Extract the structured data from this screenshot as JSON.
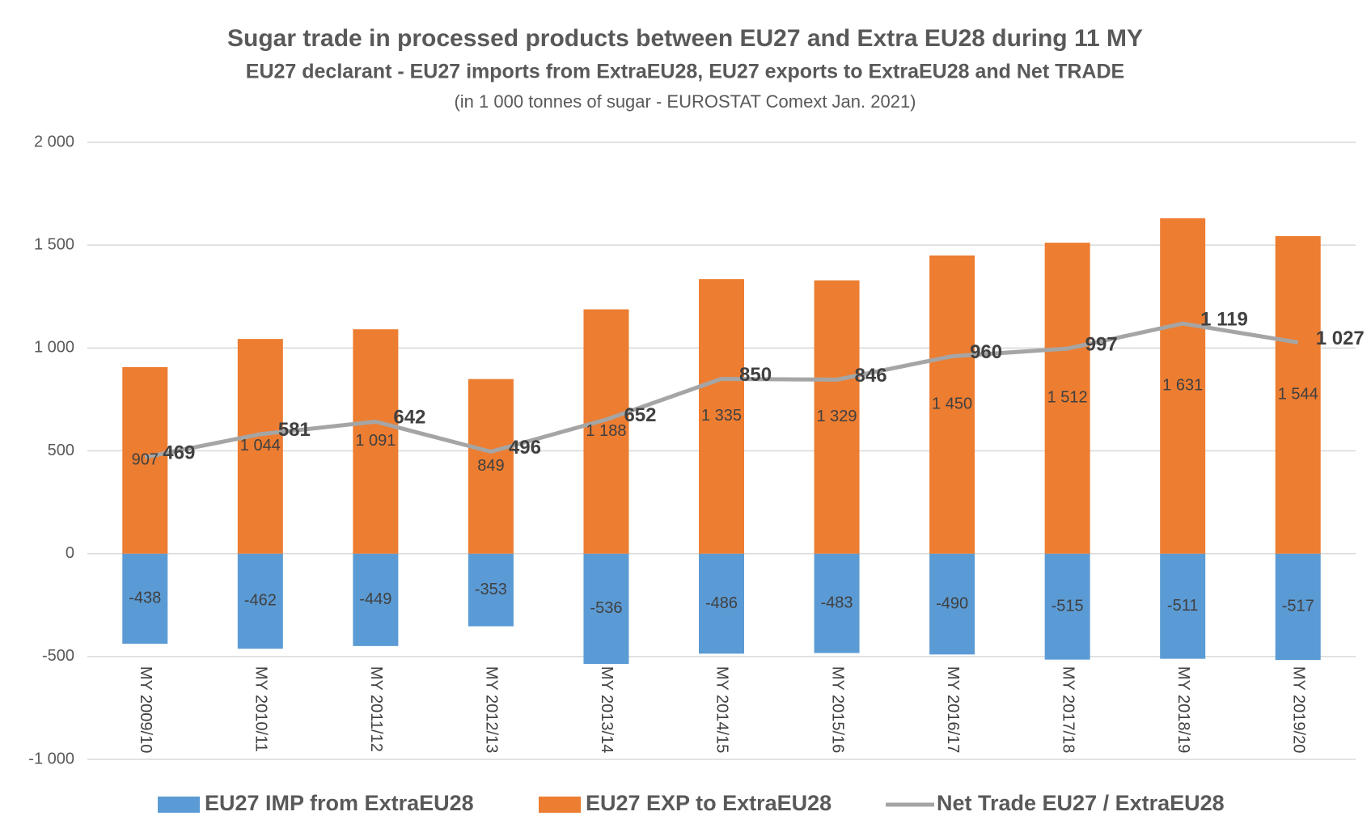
{
  "chart_data": {
    "type": "bar",
    "title": "Sugar trade in processed products between EU27 and Extra EU28 during 11 MY",
    "subtitle": "EU27 declarant - EU27 imports from ExtraEU28, EU27 exports to ExtraEU28 and Net TRADE",
    "caption": "(in 1 000 tonnes of sugar - EUROSTAT Comext Jan. 2021)",
    "categories": [
      "MY 2009/10",
      "MY 2010/11",
      "MY 2011/12",
      "MY 2012/13",
      "MY 2013/14",
      "MY 2014/15",
      "MY 2015/16",
      "MY 2016/17",
      "MY 2017/18",
      "MY 2018/19",
      "MY 2019/20"
    ],
    "series": [
      {
        "name": "EU27 IMP from ExtraEU28",
        "type": "bar",
        "color": "#5b9bd5",
        "values": [
          -438,
          -462,
          -449,
          -353,
          -536,
          -486,
          -483,
          -490,
          -515,
          -511,
          -517
        ],
        "value_labels": [
          "-438",
          "-462",
          "-449",
          "-353",
          "-536",
          "-486",
          "-483",
          "-490",
          "-515",
          "-511",
          "-517"
        ]
      },
      {
        "name": "EU27 EXP to ExtraEU28",
        "type": "bar",
        "color": "#ed7d31",
        "values": [
          907,
          1044,
          1091,
          849,
          1188,
          1335,
          1329,
          1450,
          1512,
          1631,
          1544
        ],
        "value_labels": [
          "907",
          "1 044",
          "1 091",
          "849",
          "1 188",
          "1 335",
          "1 329",
          "1 450",
          "1 512",
          "1 631",
          "1 544"
        ]
      },
      {
        "name": "Net Trade EU27 / ExtraEU28",
        "type": "line",
        "color": "#a5a5a5",
        "values": [
          469,
          581,
          642,
          496,
          652,
          850,
          846,
          960,
          997,
          1119,
          1027
        ],
        "value_labels": [
          "469",
          "581",
          "642",
          "496",
          "652",
          "850",
          "846",
          "960",
          "997",
          "1 119",
          "1 027"
        ]
      }
    ],
    "ylim": [
      -1000,
      2000
    ],
    "yticks": [
      {
        "value": -1000,
        "label": "-1 000"
      },
      -500,
      0,
      500,
      {
        "value": 1000,
        "label": "1 000"
      },
      {
        "value": 1500,
        "label": "1 500"
      },
      {
        "value": 2000,
        "label": "2 000"
      }
    ],
    "grid": true,
    "legend": "bottom"
  }
}
